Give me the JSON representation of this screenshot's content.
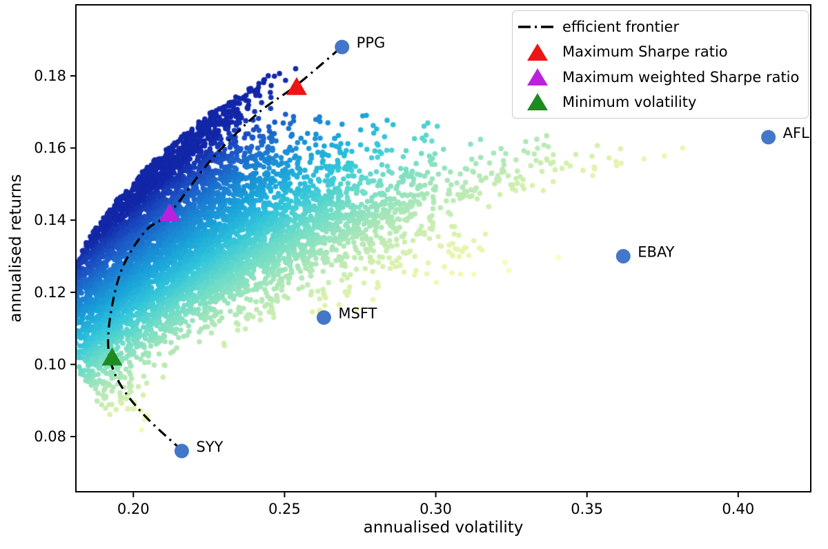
{
  "chart_data": {
    "type": "scatter",
    "title": "",
    "xlabel": "annualised volatility",
    "ylabel": "annualised returns",
    "xlim": [
      0.181,
      0.424
    ],
    "ylim": [
      0.0647,
      0.1997
    ],
    "x_ticks": [
      0.2,
      0.25,
      0.3,
      0.35,
      0.4
    ],
    "y_ticks": [
      0.08,
      0.1,
      0.12,
      0.14,
      0.16,
      0.18
    ],
    "grid": false,
    "legend_position": "upper right",
    "stocks": [
      {
        "name": "PPG",
        "volatility": 0.269,
        "return": 0.188
      },
      {
        "name": "AFL",
        "volatility": 0.41,
        "return": 0.163
      },
      {
        "name": "EBAY",
        "volatility": 0.362,
        "return": 0.13
      },
      {
        "name": "MSFT",
        "volatility": 0.263,
        "return": 0.113
      },
      {
        "name": "SYY",
        "volatility": 0.216,
        "return": 0.076
      }
    ],
    "stock_marker_color": "#4377c9",
    "special_markers": [
      {
        "name": "Maximum Sharpe ratio",
        "shape": "triangle",
        "color": "#ed1515",
        "volatility": 0.254,
        "return": 0.177
      },
      {
        "name": "Maximum weighted Sharpe ratio",
        "shape": "triangle",
        "color": "#bb21dd",
        "volatility": 0.212,
        "return": 0.142
      },
      {
        "name": "Minimum volatility",
        "shape": "triangle",
        "color": "#1e8b20",
        "volatility": 0.193,
        "return": 0.102
      }
    ],
    "efficient_frontier": {
      "label": "efficient frontier",
      "color": "#000000",
      "line_style": "dashdot",
      "points": [
        [
          0.216,
          0.0762
        ],
        [
          0.2035,
          0.086
        ],
        [
          0.1953,
          0.095
        ],
        [
          0.1918,
          0.104
        ],
        [
          0.1927,
          0.115
        ],
        [
          0.1965,
          0.127
        ],
        [
          0.204,
          0.137
        ],
        [
          0.2123,
          0.1423
        ],
        [
          0.226,
          0.157
        ],
        [
          0.241,
          0.1695
        ],
        [
          0.2541,
          0.1775
        ],
        [
          0.2694,
          0.1884
        ]
      ]
    },
    "random_portfolios": {
      "count": 7000,
      "seed": 7,
      "pairwise_correlation": 0.3,
      "point_radius": 3.8,
      "color_by": "sharpe_ratio",
      "sharpe_range": [
        0.36,
        0.72
      ],
      "colormap_name": "YlGnBu_r",
      "colormap_stops": [
        [
          0.0,
          "#ffffc6"
        ],
        [
          0.12,
          "#f6fab0"
        ],
        [
          0.25,
          "#d9f0ae"
        ],
        [
          0.38,
          "#a8e6b8"
        ],
        [
          0.5,
          "#6cdcc8"
        ],
        [
          0.6,
          "#33c6da"
        ],
        [
          0.7,
          "#1ba4da"
        ],
        [
          0.8,
          "#1b7fd2"
        ],
        [
          0.9,
          "#1c53c4"
        ],
        [
          1.0,
          "#1226a8"
        ]
      ]
    },
    "extra_points": [
      {
        "volatility": 0.2617,
        "return": 0.1148,
        "color": "#f2f0a0",
        "radius": 5
      },
      {
        "volatility": 0.2046,
        "return": 0.0857,
        "color": "#f7f4a8",
        "radius": 4
      }
    ],
    "legend": {
      "items": [
        {
          "label": "efficient frontier",
          "marker": "dashdot-line",
          "color": "#000000"
        },
        {
          "label": "Maximum Sharpe ratio",
          "marker": "triangle",
          "color": "#ed1515"
        },
        {
          "label": "Maximum weighted Sharpe ratio",
          "marker": "triangle",
          "color": "#bb21dd"
        },
        {
          "label": "Minimum volatility",
          "marker": "triangle",
          "color": "#1e8b20"
        }
      ]
    }
  }
}
